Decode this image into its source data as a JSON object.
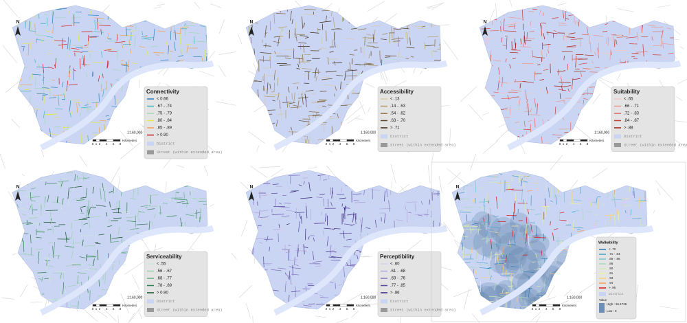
{
  "panels": [
    {
      "title": "Connectivity",
      "legend": [
        {
          "label": "< 0.66",
          "color": "#2c7fb8"
        },
        {
          "label": ".67 - .74",
          "color": "#41b6c4"
        },
        {
          "label": ".75 - .79",
          "color": "#a1dab4"
        },
        {
          "label": ".80 - .84",
          "color": "#e8e84a"
        },
        {
          "label": ".85 - .89",
          "color": "#f6a04d"
        },
        {
          "label": "> 0.90",
          "color": "#d7191c"
        }
      ],
      "district": "District",
      "street": "Street (within extended area)",
      "north": "N",
      "scale": "1:160,000",
      "scale_ticks": [
        "0",
        "1",
        "2",
        "4",
        "6",
        "8"
      ],
      "scale_unit": "Kilometers"
    },
    {
      "title": "Accessibility",
      "legend": [
        {
          "label": "< .13",
          "color": "#d9c9a8"
        },
        {
          "label": ".14 - .53",
          "color": "#b59a6a"
        },
        {
          "label": ".54 - .62",
          "color": "#8a6a3c"
        },
        {
          "label": ".63 - .70",
          "color": "#5e4322"
        },
        {
          "label": "> .71",
          "color": "#3a2510"
        }
      ],
      "district": "District",
      "street": "Street (within extended area)",
      "north": "N",
      "scale": "1:160,000",
      "scale_ticks": [
        "0",
        "1",
        "2",
        "4",
        "6",
        "8"
      ],
      "scale_unit": "Kilometers"
    },
    {
      "title": "Suitability",
      "legend": [
        {
          "label": "< .65",
          "color": "#f4c6c0"
        },
        {
          "label": ".66 - .71",
          "color": "#ec9a90"
        },
        {
          "label": ".72 - .83",
          "color": "#e0665c"
        },
        {
          "label": ".84 - .87",
          "color": "#cc3a30"
        },
        {
          "label": "> .88",
          "color": "#a81b12"
        }
      ],
      "district": "District",
      "street": "Street (within extended area)",
      "north": "N",
      "scale": "1:160,000",
      "scale_ticks": [
        "0",
        "1",
        "2",
        "4",
        "6",
        "8"
      ],
      "scale_unit": "Kilometers"
    },
    {
      "title": "Serviceability",
      "legend": [
        {
          "label": "< .55",
          "color": "#cfe8d8"
        },
        {
          "label": ".56 - .67",
          "color": "#9fd0b0"
        },
        {
          "label": ".68 - .77",
          "color": "#5fae80"
        },
        {
          "label": ".78 - .89",
          "color": "#2f8050"
        },
        {
          "label": "> 0.90",
          "color": "#0f5028"
        }
      ],
      "district": "District",
      "street": "Street (within extended area)",
      "north": "N",
      "scale": "1:160,000",
      "scale_ticks": [
        "0",
        "1",
        "2",
        "4",
        "6",
        "8"
      ],
      "scale_unit": "Kilometers"
    },
    {
      "title": "Perceptibility",
      "legend": [
        {
          "label": "< .60",
          "color": "#d8d0ec"
        },
        {
          "label": ".61 - .68",
          "color": "#b3a6dc"
        },
        {
          "label": ".69 - .76",
          "color": "#8672c2"
        },
        {
          "label": ".77 - .85",
          "color": "#5c46a0"
        },
        {
          "label": "> .86",
          "color": "#36207a"
        }
      ],
      "district": "District",
      "street": "Street (within extended area)",
      "north": "N",
      "scale": "1:160,000",
      "scale_ticks": [
        "0",
        "1",
        "2",
        "4",
        "6",
        "8"
      ],
      "scale_unit": "Kilometers"
    },
    {
      "title": "Walkability",
      "legend": [
        {
          "label": "< .70",
          "color": "#2c7bb6"
        },
        {
          "label": ".71 - .84",
          "color": "#4aa0c8"
        },
        {
          "label": ".85 - .86",
          "color": "#7cc4d0"
        },
        {
          "label": ".86",
          "color": "#abd9c0"
        },
        {
          "label": ".90",
          "color": "#d4ecb0"
        },
        {
          "label": ".91",
          "color": "#f2f0a0"
        },
        {
          "label": ".93",
          "color": "#fdd27a"
        },
        {
          "label": ".94",
          "color": "#f99d59"
        },
        {
          "label": "> .96",
          "color": "#d7191c"
        }
      ],
      "district": "District",
      "value": "Value",
      "high": "High : 36.1736",
      "low": "Low : 0",
      "north": "N",
      "scale": "1:160,000",
      "scale_ticks": [
        "0",
        "1",
        "2",
        "4",
        "6",
        "8"
      ],
      "scale_unit": "Kilometers"
    }
  ]
}
